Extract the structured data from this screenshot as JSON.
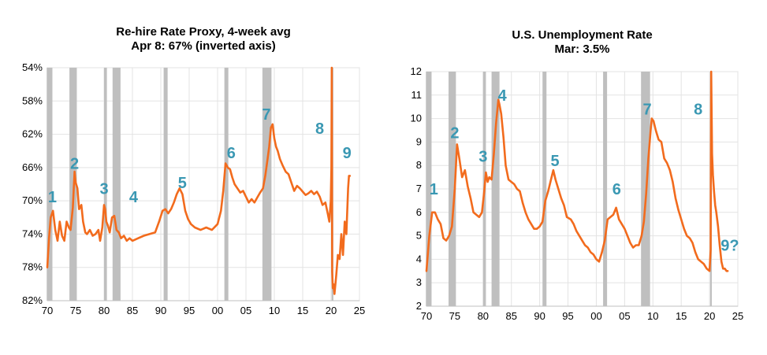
{
  "chart_data": [
    {
      "type": "line",
      "title": "Re-hire Rate Proxy, 4-week avg",
      "subtitle": "Apr 8: 67% (inverted axis)",
      "y_inverted": true,
      "ylim": [
        54,
        82
      ],
      "y_ticks": [
        54,
        58,
        62,
        66,
        70,
        74,
        78,
        82
      ],
      "y_tick_labels": [
        "54%",
        "58%",
        "62%",
        "66%",
        "70%",
        "74%",
        "78%",
        "82%"
      ],
      "xlim": [
        1970,
        2025
      ],
      "x_ticks": [
        1970,
        1975,
        1980,
        1985,
        1990,
        1995,
        2000,
        2005,
        2010,
        2015,
        2020,
        2025
      ],
      "x_tick_labels": [
        "70",
        "75",
        "80",
        "85",
        "90",
        "95",
        "00",
        "05",
        "10",
        "15",
        "20",
        "25"
      ],
      "grid": true,
      "line_color": "#f26b1d",
      "recession_color": "#bfbfbf",
      "recessions": [
        [
          1969.9,
          1970.9
        ],
        [
          1973.9,
          1975.2
        ],
        [
          1980.0,
          1980.5
        ],
        [
          1981.5,
          1982.9
        ],
        [
          1990.5,
          1991.2
        ],
        [
          2001.2,
          2001.9
        ],
        [
          2007.9,
          2009.5
        ],
        [
          2020.1,
          2020.4
        ]
      ],
      "series": [
        {
          "x": [
            1970.0,
            1970.3,
            1970.6,
            1971.0,
            1971.4,
            1971.8,
            1972.2,
            1972.6,
            1973.0,
            1973.4,
            1973.8,
            1974.1,
            1974.5,
            1974.8,
            1975.0,
            1975.3,
            1975.6,
            1976.0,
            1976.3,
            1976.7,
            1977.0,
            1977.5,
            1978.0,
            1978.5,
            1979.0,
            1979.3,
            1979.7,
            1980.0,
            1980.2,
            1980.4,
            1980.7,
            1981.0,
            1981.4,
            1981.8,
            1982.2,
            1982.6,
            1983.0,
            1983.5,
            1984.0,
            1984.5,
            1985.0,
            1986.0,
            1987.0,
            1988.0,
            1989.0,
            1989.7,
            1990.3,
            1990.8,
            1991.3,
            1991.8,
            1992.3,
            1992.8,
            1993.3,
            1993.8,
            1994.3,
            1994.8,
            1995.3,
            1996.0,
            1997.0,
            1998.0,
            1999.0,
            2000.0,
            2000.6,
            2001.0,
            2001.4,
            2001.8,
            2002.2,
            2002.6,
            2003.0,
            2003.5,
            2004.0,
            2004.5,
            2005.0,
            2005.5,
            2006.0,
            2006.5,
            2007.0,
            2007.5,
            2008.0,
            2008.4,
            2008.8,
            2009.1,
            2009.4,
            2009.7,
            2010.0,
            2010.3,
            2010.6,
            2011.0,
            2011.5,
            2012.0,
            2012.5,
            2013.0,
            2013.5,
            2014.0,
            2014.5,
            2015.0,
            2015.5,
            2016.0,
            2016.5,
            2017.0,
            2017.5,
            2018.0,
            2018.5,
            2019.0,
            2019.4,
            2019.7,
            2019.95,
            2020.05,
            2020.12,
            2020.2,
            2020.3,
            2020.4,
            2020.6,
            2020.9,
            2021.2,
            2021.5,
            2021.8,
            2022.1,
            2022.4,
            2022.7,
            2023.0,
            2023.15,
            2023.3
          ],
          "y": [
            78.0,
            74.5,
            72.0,
            71.2,
            73.5,
            74.8,
            72.5,
            74.2,
            74.8,
            72.5,
            73.2,
            73.5,
            70.8,
            66.5,
            67.8,
            68.5,
            71.0,
            70.5,
            72.5,
            73.8,
            74.0,
            73.5,
            74.2,
            74.0,
            73.5,
            74.8,
            73.2,
            70.5,
            71.0,
            72.5,
            73.0,
            73.8,
            72.0,
            71.8,
            73.5,
            73.8,
            74.5,
            74.2,
            74.8,
            74.5,
            74.8,
            74.5,
            74.2,
            74.0,
            73.8,
            72.5,
            71.2,
            71.0,
            71.5,
            71.0,
            70.2,
            69.2,
            68.5,
            69.2,
            71.2,
            72.2,
            72.8,
            73.2,
            73.5,
            73.2,
            73.5,
            72.8,
            71.2,
            68.8,
            65.5,
            66.0,
            66.2,
            67.2,
            68.0,
            68.5,
            69.0,
            68.8,
            69.5,
            70.2,
            69.8,
            70.2,
            69.6,
            69.0,
            68.5,
            67.0,
            65.0,
            63.5,
            61.2,
            60.8,
            62.5,
            63.5,
            64.0,
            65.0,
            65.8,
            66.5,
            66.8,
            67.8,
            68.8,
            68.2,
            68.5,
            68.9,
            69.3,
            69.1,
            68.8,
            69.2,
            68.9,
            69.5,
            70.5,
            70.2,
            71.5,
            72.5,
            70.0,
            66.0,
            54.0,
            78.5,
            80.5,
            80.0,
            81.2,
            79.0,
            76.5,
            77.0,
            74.0,
            76.5,
            72.5,
            74.0,
            68.5,
            67.0,
            67.0
          ]
        }
      ],
      "annotations": [
        {
          "text": "1",
          "x": 1970.9,
          "y": 69.5
        },
        {
          "text": "2",
          "x": 1974.8,
          "y": 65.5
        },
        {
          "text": "3",
          "x": 1980.0,
          "y": 68.5
        },
        {
          "text": "4",
          "x": 1985.2,
          "y": 69.5
        },
        {
          "text": "5",
          "x": 1993.8,
          "y": 67.8
        },
        {
          "text": "6",
          "x": 2002.4,
          "y": 64.2
        },
        {
          "text": "7",
          "x": 2008.6,
          "y": 59.6
        },
        {
          "text": "8",
          "x": 2018.0,
          "y": 61.3
        },
        {
          "text": "9",
          "x": 2022.8,
          "y": 64.2
        }
      ]
    },
    {
      "type": "line",
      "title": "U.S. Unemployment Rate",
      "subtitle": "Mar: 3.5%",
      "ylim": [
        2,
        12
      ],
      "y_ticks": [
        2,
        3,
        4,
        5,
        6,
        7,
        8,
        9,
        10,
        11,
        12
      ],
      "y_tick_labels": [
        "2",
        "3",
        "4",
        "5",
        "6",
        "7",
        "8",
        "9",
        "10",
        "11",
        "12"
      ],
      "xlim": [
        1970,
        2025
      ],
      "x_ticks": [
        1970,
        1975,
        1980,
        1985,
        1990,
        1995,
        2000,
        2005,
        2010,
        2015,
        2020,
        2025
      ],
      "x_tick_labels": [
        "70",
        "75",
        "80",
        "85",
        "90",
        "95",
        "00",
        "05",
        "10",
        "15",
        "20",
        "25"
      ],
      "grid": true,
      "line_color": "#f26b1d",
      "recession_color": "#bfbfbf",
      "recessions": [
        [
          1969.9,
          1970.9
        ],
        [
          1973.9,
          1975.2
        ],
        [
          1980.0,
          1980.5
        ],
        [
          1981.5,
          1982.9
        ],
        [
          1990.5,
          1991.2
        ],
        [
          2001.2,
          2001.9
        ],
        [
          2007.9,
          2009.5
        ],
        [
          2020.1,
          2020.4
        ]
      ],
      "series": [
        {
          "x": [
            1970.0,
            1970.5,
            1971.0,
            1971.5,
            1972.0,
            1972.5,
            1973.0,
            1973.5,
            1974.0,
            1974.5,
            1975.0,
            1975.4,
            1975.8,
            1976.3,
            1976.8,
            1977.3,
            1977.8,
            1978.3,
            1978.8,
            1979.3,
            1979.8,
            1980.2,
            1980.5,
            1980.8,
            1981.1,
            1981.5,
            1981.9,
            1982.3,
            1982.7,
            1982.9,
            1983.2,
            1983.6,
            1984.0,
            1984.5,
            1985.0,
            1985.5,
            1986.0,
            1986.5,
            1987.0,
            1987.5,
            1988.0,
            1988.5,
            1989.0,
            1989.5,
            1990.0,
            1990.5,
            1991.0,
            1991.5,
            1992.0,
            1992.4,
            1992.8,
            1993.3,
            1993.8,
            1994.3,
            1994.8,
            1995.5,
            1996.0,
            1996.5,
            1997.0,
            1997.5,
            1998.0,
            1998.5,
            1999.0,
            1999.5,
            2000.0,
            2000.5,
            2001.0,
            2001.5,
            2002.0,
            2002.5,
            2003.0,
            2003.5,
            2004.0,
            2004.5,
            2005.0,
            2005.5,
            2006.0,
            2006.5,
            2007.0,
            2007.5,
            2008.0,
            2008.4,
            2008.8,
            2009.2,
            2009.6,
            2009.8,
            2010.1,
            2010.5,
            2011.0,
            2011.5,
            2012.0,
            2012.5,
            2013.0,
            2013.5,
            2014.0,
            2014.5,
            2015.0,
            2015.5,
            2016.0,
            2016.5,
            2017.0,
            2017.5,
            2018.0,
            2018.5,
            2019.0,
            2019.5,
            2020.0,
            2020.2,
            2020.3,
            2020.45,
            2020.6,
            2020.8,
            2021.0,
            2021.2,
            2021.5,
            2021.8,
            2022.1,
            2022.4,
            2022.7,
            2023.0,
            2023.2
          ],
          "y": [
            3.5,
            5.0,
            6.0,
            6.0,
            5.7,
            5.5,
            4.9,
            4.8,
            5.0,
            5.4,
            7.0,
            8.9,
            8.3,
            7.5,
            7.8,
            7.1,
            6.6,
            6.0,
            5.9,
            5.8,
            6.0,
            6.9,
            7.7,
            7.3,
            7.5,
            7.4,
            8.5,
            9.8,
            10.8,
            10.6,
            10.2,
            9.2,
            8.0,
            7.4,
            7.3,
            7.2,
            7.0,
            6.9,
            6.4,
            6.0,
            5.7,
            5.5,
            5.3,
            5.3,
            5.4,
            5.6,
            6.5,
            6.9,
            7.4,
            7.8,
            7.4,
            7.0,
            6.6,
            6.3,
            5.8,
            5.7,
            5.5,
            5.2,
            5.0,
            4.8,
            4.6,
            4.5,
            4.3,
            4.2,
            4.0,
            3.9,
            4.3,
            4.8,
            5.7,
            5.8,
            5.9,
            6.2,
            5.7,
            5.5,
            5.3,
            5.0,
            4.7,
            4.5,
            4.6,
            4.6,
            5.0,
            5.6,
            6.8,
            8.3,
            9.5,
            10.0,
            9.9,
            9.5,
            9.1,
            9.0,
            8.3,
            8.1,
            7.8,
            7.3,
            6.6,
            6.1,
            5.7,
            5.3,
            5.0,
            4.9,
            4.7,
            4.3,
            4.0,
            3.9,
            3.8,
            3.6,
            3.5,
            4.4,
            12.0,
            8.5,
            7.6,
            6.9,
            6.3,
            6.0,
            5.4,
            4.6,
            3.9,
            3.6,
            3.6,
            3.5,
            3.5
          ]
        }
      ],
      "annotations": [
        {
          "text": "1",
          "x": 1971.3,
          "y": 7.0
        },
        {
          "text": "2",
          "x": 1975.0,
          "y": 9.4
        },
        {
          "text": "3",
          "x": 1980.0,
          "y": 8.4
        },
        {
          "text": "4",
          "x": 1983.4,
          "y": 11.0
        },
        {
          "text": "5",
          "x": 1992.7,
          "y": 8.2
        },
        {
          "text": "6",
          "x": 2003.6,
          "y": 7.0
        },
        {
          "text": "7",
          "x": 2009.0,
          "y": 10.4
        },
        {
          "text": "8",
          "x": 2018.0,
          "y": 10.4
        },
        {
          "text": "9?",
          "x": 2023.6,
          "y": 4.6
        }
      ]
    }
  ]
}
